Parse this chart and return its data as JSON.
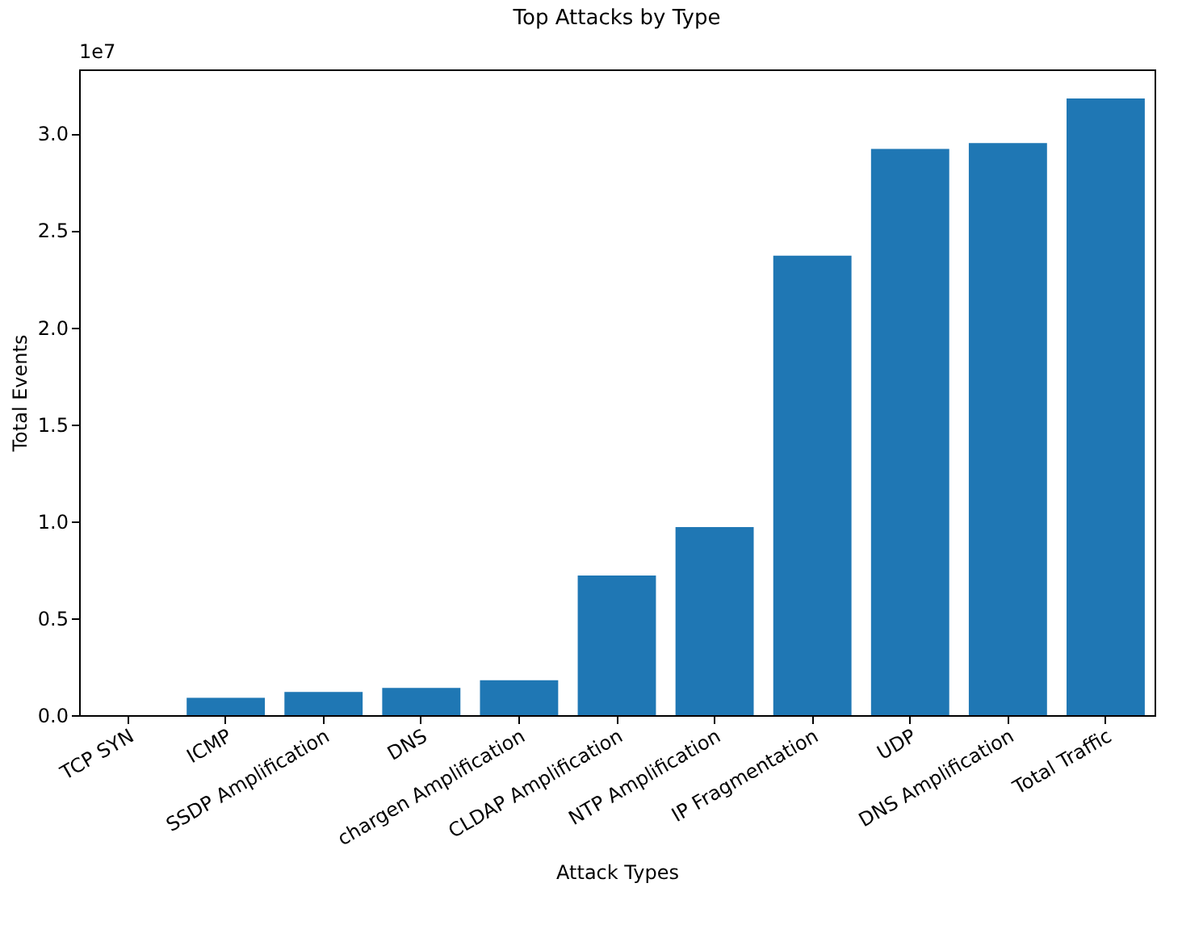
{
  "chart_data": {
    "type": "bar",
    "title": "Top Attacks by Type",
    "xlabel": "Attack Types",
    "ylabel": "Total Events",
    "categories": [
      "TCP SYN",
      "ICMP",
      "SSDP Amplification",
      "DNS",
      "chargen Amplification",
      "CLDAP Amplification",
      "NTP Amplification",
      "IP Fragmentation",
      "UDP",
      "DNS Amplification",
      "Total Traffic"
    ],
    "values": [
      0,
      0.09,
      0.12,
      0.14,
      0.18,
      0.72,
      0.97,
      2.37,
      2.92,
      2.95,
      3.18
    ],
    "color": "#1f77b4",
    "ylim": [
      0,
      3.33
    ],
    "yticks": [
      {
        "value": 0,
        "label": "0.0"
      },
      0.5,
      {
        "value": 1,
        "label": "1.0"
      },
      1.5,
      {
        "value": 2,
        "label": "2.0"
      },
      2.5,
      {
        "value": 3,
        "label": "3.0"
      }
    ],
    "annotations": [
      "1e7"
    ],
    "grid": false
  }
}
